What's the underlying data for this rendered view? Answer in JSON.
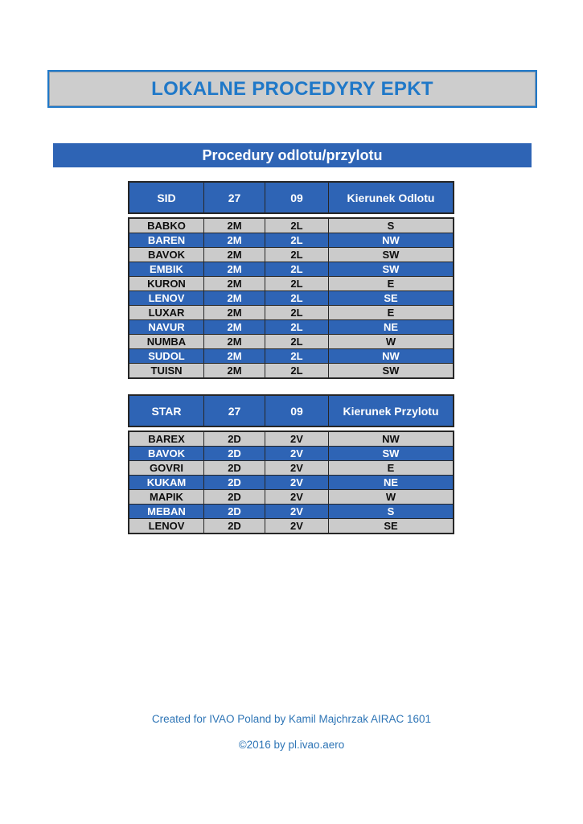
{
  "page": {
    "title": "LOKALNE PROCEDYRY EPKT",
    "section_banner": "Procedury odlotu/przylotu",
    "footer_line1": "Created for IVAO Poland by Kamil Majchrzak AIRAC 1601",
    "footer_line2": "©2016 by pl.ivao.aero"
  },
  "colors": {
    "title_blue": "#1F78C8",
    "title_box_bg": "#CDCDCD",
    "banner_blue": "#2E64B5",
    "row_gray": "#CBCBCB",
    "row_blue": "#2E64B5",
    "table_border": "#262626",
    "footer_blue": "#2E75B6"
  },
  "tables": [
    {
      "name": "sid-table",
      "headers": [
        "SID",
        "27",
        "09",
        "Kierunek Odlotu"
      ],
      "rows": [
        {
          "cells": [
            "BABKO",
            "2M",
            "2L",
            "S"
          ],
          "highlight": false
        },
        {
          "cells": [
            "BAREN",
            "2M",
            "2L",
            "NW"
          ],
          "highlight": true
        },
        {
          "cells": [
            "BAVOK",
            "2M",
            "2L",
            "SW"
          ],
          "highlight": false
        },
        {
          "cells": [
            "EMBIK",
            "2M",
            "2L",
            "SW"
          ],
          "highlight": true
        },
        {
          "cells": [
            "KURON",
            "2M",
            "2L",
            "E"
          ],
          "highlight": false
        },
        {
          "cells": [
            "LENOV",
            "2M",
            "2L",
            "SE"
          ],
          "highlight": true
        },
        {
          "cells": [
            "LUXAR",
            "2M",
            "2L",
            "E"
          ],
          "highlight": false
        },
        {
          "cells": [
            "NAVUR",
            "2M",
            "2L",
            "NE"
          ],
          "highlight": true
        },
        {
          "cells": [
            "NUMBA",
            "2M",
            "2L",
            "W"
          ],
          "highlight": false
        },
        {
          "cells": [
            "SUDOL",
            "2M",
            "2L",
            "NW"
          ],
          "highlight": true
        },
        {
          "cells": [
            "TUISN",
            "2M",
            "2L",
            "SW"
          ],
          "highlight": false
        }
      ]
    },
    {
      "name": "star-table",
      "headers": [
        "STAR",
        "27",
        "09",
        "Kierunek Przylotu"
      ],
      "rows": [
        {
          "cells": [
            "BAREX",
            "2D",
            "2V",
            "NW"
          ],
          "highlight": false
        },
        {
          "cells": [
            "BAVOK",
            "2D",
            "2V",
            "SW"
          ],
          "highlight": true
        },
        {
          "cells": [
            "GOVRI",
            "2D",
            "2V",
            "E"
          ],
          "highlight": false
        },
        {
          "cells": [
            "KUKAM",
            "2D",
            "2V",
            "NE"
          ],
          "highlight": true
        },
        {
          "cells": [
            "MAPIK",
            "2D",
            "2V",
            "W"
          ],
          "highlight": false
        },
        {
          "cells": [
            "MEBAN",
            "2D",
            "2V",
            "S"
          ],
          "highlight": true
        },
        {
          "cells": [
            "LENOV",
            "2D",
            "2V",
            "SE"
          ],
          "highlight": false
        }
      ]
    }
  ]
}
